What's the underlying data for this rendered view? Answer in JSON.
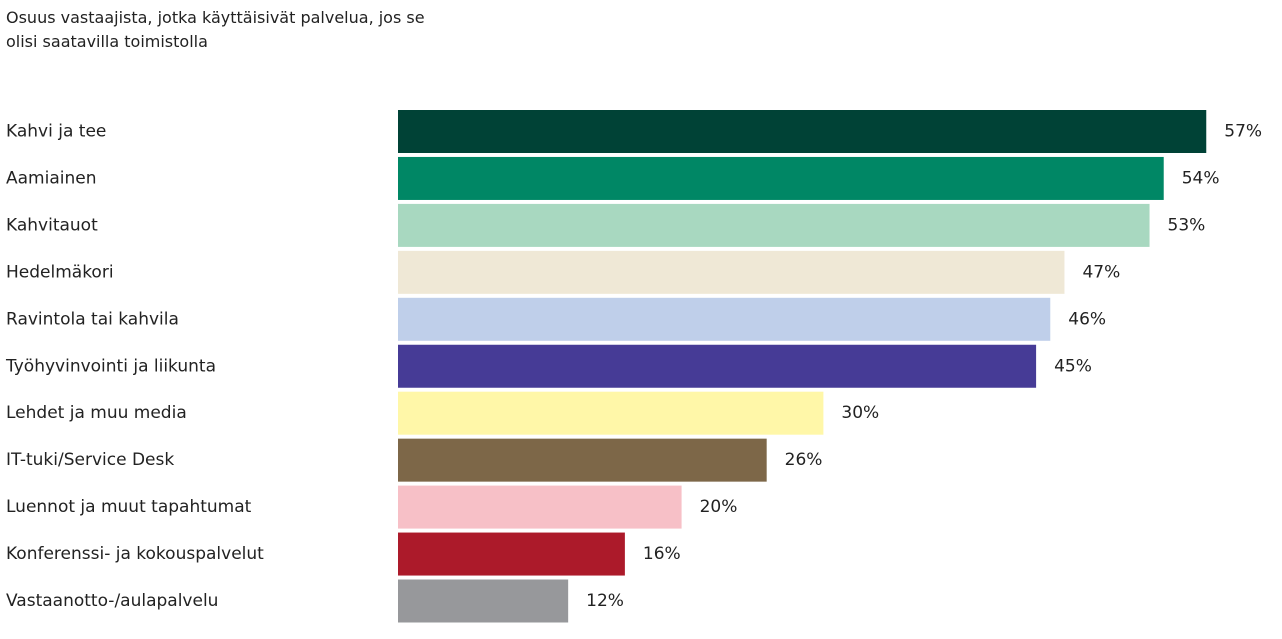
{
  "chart_data": {
    "type": "bar",
    "orientation": "horizontal",
    "title": "Osuus vastaajista, jotka käyttäisivät palvelua, jos se olisi saatavilla toimistolla",
    "categories": [
      "Kahvi ja tee",
      "Aamiainen",
      "Kahvitauot",
      "Hedelmäkori",
      "Ravintola tai kahvila",
      "Työhyvinvointi ja liikunta",
      "Lehdet ja muu media",
      "IT-tuki/Service Desk",
      "Luennot ja muut tapahtumat",
      "Konferenssi- ja kokouspalvelut",
      "Vastaanotto-/aulapalvelu"
    ],
    "values": [
      57,
      54,
      53,
      47,
      46,
      45,
      30,
      26,
      20,
      16,
      12
    ],
    "value_labels": [
      "57%",
      "54%",
      "53%",
      "47%",
      "46%",
      "45%",
      "30%",
      "26%",
      "20%",
      "16%",
      "12%"
    ],
    "colors": [
      "#004236",
      "#008765",
      "#a8d8c0",
      "#efe8d6",
      "#bfcfea",
      "#463b96",
      "#fff7a8",
      "#7d6748",
      "#f7c0c7",
      "#ac1a2a",
      "#97989b"
    ]
  }
}
